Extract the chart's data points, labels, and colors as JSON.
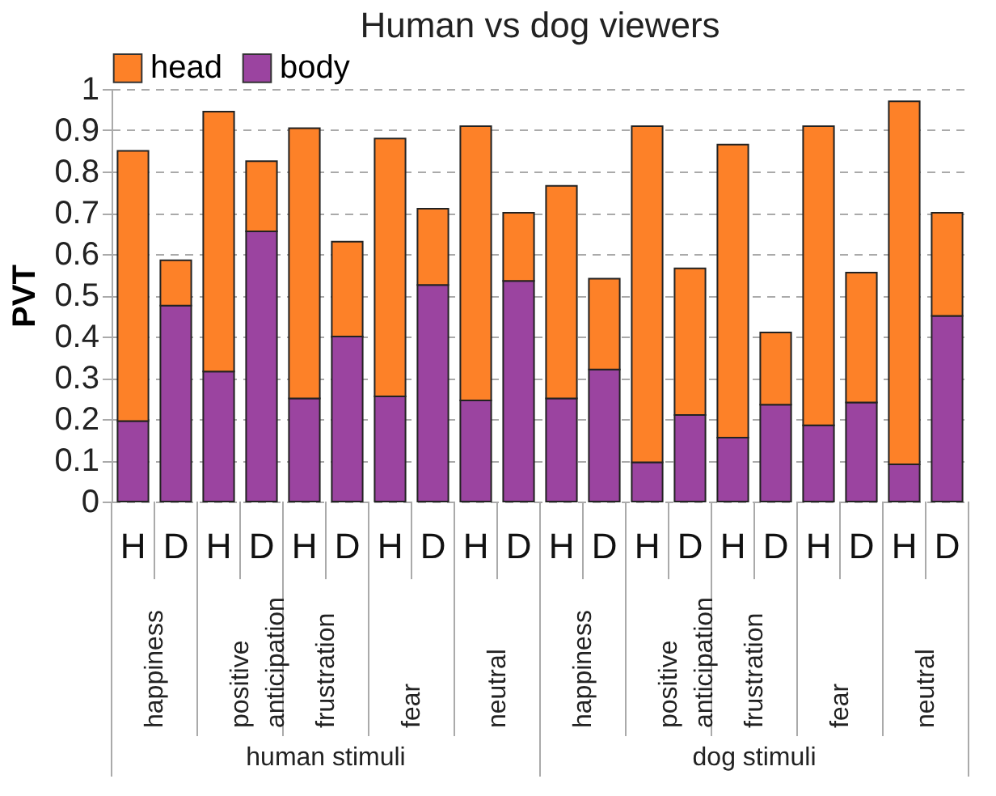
{
  "chart_data": {
    "type": "bar",
    "title": "Human vs dog viewers",
    "ylabel": "PVT",
    "categories": [
      "H",
      "D",
      "H",
      "D",
      "H",
      "D",
      "H",
      "D",
      "H",
      "D",
      "H",
      "D",
      "H",
      "D",
      "H",
      "D",
      "H",
      "D",
      "H",
      "D"
    ],
    "stacked": true,
    "series": [
      {
        "name": "body",
        "color": "#9b44a0",
        "values": [
          0.195,
          0.475,
          0.315,
          0.655,
          0.25,
          0.4,
          0.255,
          0.525,
          0.245,
          0.535,
          0.25,
          0.32,
          0.095,
          0.21,
          0.155,
          0.235,
          0.185,
          0.24,
          0.09,
          0.45
        ]
      },
      {
        "name": "head",
        "color": "#fd8128",
        "values": [
          0.655,
          0.11,
          0.63,
          0.17,
          0.655,
          0.23,
          0.625,
          0.185,
          0.665,
          0.165,
          0.515,
          0.22,
          0.815,
          0.355,
          0.71,
          0.175,
          0.725,
          0.315,
          0.88,
          0.25
        ]
      }
    ],
    "ylim": [
      0,
      1
    ],
    "yticks": [
      0,
      0.1,
      0.2,
      0.3,
      0.4,
      0.5,
      0.6,
      0.7,
      0.8,
      0.9,
      1
    ],
    "grid": "y",
    "legend": "top",
    "annotations": [
      "happiness",
      "positive anticipation",
      "frustration",
      "fear",
      "neutral",
      "happiness",
      "positive anticipation",
      "frustration",
      "fear",
      "neutral",
      "human stimuli",
      "dog stimuli"
    ]
  }
}
